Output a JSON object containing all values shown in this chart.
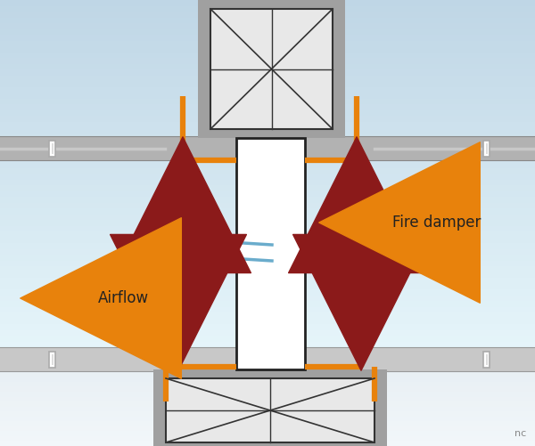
{
  "orange": "#e8820c",
  "red": "#8b1a1a",
  "blue": "#6aaccc",
  "wall_gray": "#a8a8a8",
  "duct_fill": "#e0e0e0",
  "bg_top_color": "#c5d8e5",
  "bg_bot_color": "#dceaf2",
  "fire_damper_label": "Fire damper",
  "airflow_label": "Airflow",
  "label_fontsize": 12,
  "nc_text": "nc"
}
